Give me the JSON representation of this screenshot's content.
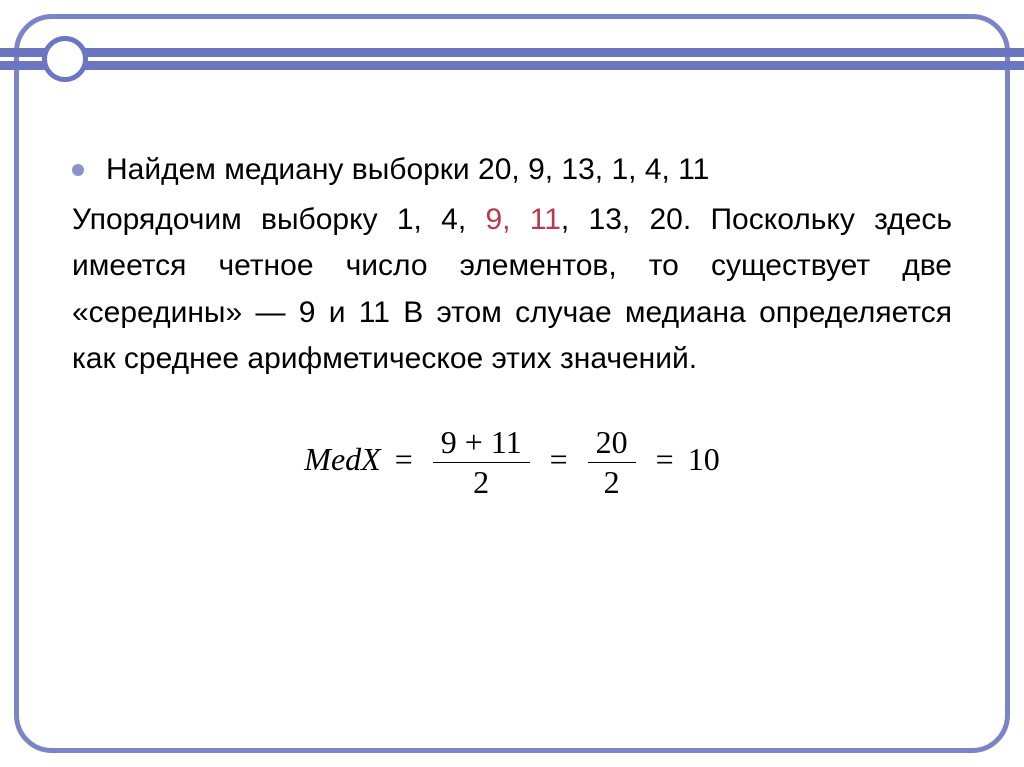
{
  "slide": {
    "border_color": "#7b85c5",
    "accent_color": "#6a76bf",
    "bullet_color": "#8b93cc",
    "highlight_color": "#b73a4e",
    "bullet_line": "Найдем медиану выборки 20, 9, 13, 1, 4, 11",
    "para_prefix": "Упорядочим выборку 1, 4, ",
    "para_hl": "9, 11",
    "para_suffix": ", 13, 20. Поскольку здесь имеется четное число элементов, то существует две «середины» — 9 и 11 В этом случае медиана определяется как среднее арифметическое этих значений.",
    "formula": {
      "label": "MedX",
      "frac1_num": "9 + 11",
      "frac1_den": "2",
      "frac2_num": "20",
      "frac2_den": "2",
      "result": "10"
    }
  }
}
